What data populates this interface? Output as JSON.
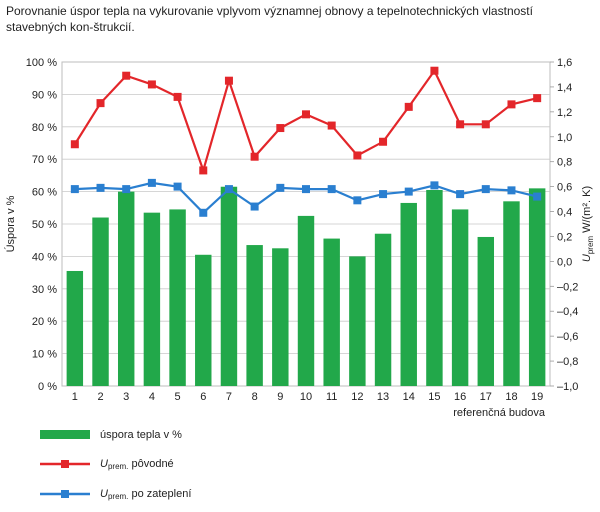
{
  "caption": "Porovnanie úspor tepla na vykurovanie vplyvom významnej obnovy a tepelnotechnických vlastností stavebných kon-štrukcií.",
  "colors": {
    "bar": "#22a84a",
    "red": "#e3262a",
    "blue": "#2a7fd0",
    "grid": "#c9c9c9"
  },
  "chart_data": {
    "type": "bar",
    "categories": [
      "1",
      "2",
      "3",
      "4",
      "5",
      "6",
      "7",
      "8",
      "9",
      "10",
      "11",
      "12",
      "13",
      "14",
      "15",
      "16",
      "17",
      "18",
      "19"
    ],
    "xlabel": "referenčná budova",
    "ylabel_left": "Úspora v %",
    "ylabel_right_main": "U",
    "ylabel_right_sub": "prem",
    "ylabel_right_unit": "W/(m². K)",
    "ylim_left": [
      0,
      100
    ],
    "yticks_left": [
      "0 %",
      "10 %",
      "20 %",
      "30 %",
      "40 %",
      "50 %",
      "60 %",
      "70 %",
      "80 %",
      "90 %",
      "100 %"
    ],
    "ylim_right": [
      -1.0,
      1.6
    ],
    "yticks_right": [
      "–1,0",
      "–0,8",
      "–0,6",
      "–0,4",
      "–0,2",
      "0,0",
      "0,2",
      "0,4",
      "0,6",
      "0,8",
      "1,0",
      "1,2",
      "1,4",
      "1,6"
    ],
    "grid": true,
    "series": [
      {
        "name": "úspora tepla v %",
        "kind": "bar",
        "axis": "left",
        "values": [
          35.5,
          52,
          60,
          53.5,
          54.5,
          40.5,
          61.5,
          43.5,
          42.5,
          52.5,
          45.5,
          40,
          47,
          56.5,
          60.5,
          54.5,
          46,
          57,
          61
        ]
      },
      {
        "name_main": "U",
        "name_sub": "prem.",
        "name_tail": "pôvodné",
        "kind": "line",
        "axis": "right",
        "values": [
          0.94,
          1.27,
          1.49,
          1.42,
          1.32,
          0.73,
          1.45,
          0.84,
          1.07,
          1.18,
          1.09,
          0.85,
          0.96,
          1.24,
          1.53,
          1.1,
          1.1,
          1.26,
          1.31
        ]
      },
      {
        "name_main": "U",
        "name_sub": "prem.",
        "name_tail": "po zateplení",
        "kind": "line",
        "axis": "right",
        "values": [
          0.58,
          0.59,
          0.58,
          0.63,
          0.6,
          0.39,
          0.58,
          0.44,
          0.59,
          0.58,
          0.58,
          0.49,
          0.54,
          0.56,
          0.61,
          0.54,
          0.58,
          0.57,
          0.52
        ]
      }
    ]
  }
}
